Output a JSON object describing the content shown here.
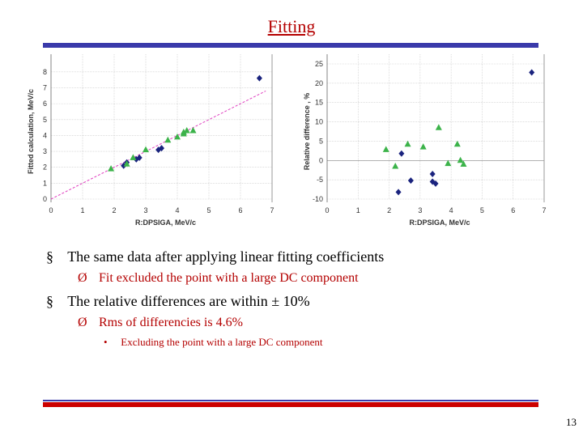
{
  "slide": {
    "title": "Fitting",
    "bullets": [
      {
        "marker": "§",
        "text": "The same data after applying linear fitting coefficients"
      },
      {
        "marker": "Ø",
        "text": "Fit excluded the point with a large DC component"
      },
      {
        "marker": "§",
        "text": "The relative differences are within ± 10%"
      },
      {
        "marker": "Ø",
        "text": "Rms of differencies is  4.6%"
      },
      {
        "marker": "•",
        "text": "Excluding the point with a large DC component"
      }
    ],
    "page_number": "13",
    "colors": {
      "title": "#b40000",
      "top_rule": "#3a3aaa",
      "bottom_rule": "#cc0000",
      "blue": "#1a237e",
      "green": "#3cb34a",
      "fit_line": "#e040c0"
    }
  },
  "chart_data": [
    {
      "type": "scatter",
      "xlabel": "R:DPSIGA, MeV/c",
      "ylabel": "Fitted calculation, MeV/c",
      "xlim": [
        0,
        7
      ],
      "ylim": [
        0,
        8.5
      ],
      "xticks": [
        "0",
        "1",
        "2",
        "3",
        "4",
        "5",
        "6",
        "7"
      ],
      "yticks": [
        "0",
        "1",
        "2",
        "3",
        "4",
        "5",
        "6",
        "7",
        "8"
      ],
      "grid": true,
      "fit_line": {
        "x": [
          0,
          6.8
        ],
        "y": [
          0,
          6.8
        ]
      },
      "series": [
        {
          "marker": "diamond",
          "color": "#1a237e",
          "points": [
            [
              2.3,
              2.1
            ],
            [
              2.4,
              2.3
            ],
            [
              2.7,
              2.5
            ],
            [
              2.8,
              2.6
            ],
            [
              3.4,
              3.1
            ],
            [
              3.5,
              3.2
            ],
            [
              6.6,
              7.6
            ]
          ]
        },
        {
          "marker": "triangle",
          "color": "#3cb34a",
          "points": [
            [
              1.9,
              1.9
            ],
            [
              2.4,
              2.2
            ],
            [
              2.6,
              2.6
            ],
            [
              3.0,
              3.1
            ],
            [
              3.7,
              3.7
            ],
            [
              4.0,
              3.9
            ],
            [
              4.2,
              4.2
            ],
            [
              4.3,
              4.3
            ],
            [
              4.5,
              4.3
            ],
            [
              4.2,
              4.1
            ]
          ]
        }
      ]
    },
    {
      "type": "scatter",
      "xlabel": "R:DPSIGA, MeV/c",
      "ylabel": "Relative difference , %",
      "xlim": [
        0,
        7
      ],
      "ylim": [
        -10,
        25
      ],
      "xticks": [
        "0",
        "1",
        "2",
        "3",
        "4",
        "5",
        "6",
        "7"
      ],
      "yticks": [
        "-10",
        "-5",
        "0",
        "5",
        "10",
        "15",
        "20",
        "25"
      ],
      "grid": true,
      "series": [
        {
          "marker": "diamond",
          "color": "#1a237e",
          "points": [
            [
              2.3,
              -8.2
            ],
            [
              2.4,
              1.8
            ],
            [
              2.7,
              -5.2
            ],
            [
              3.4,
              -3.5
            ],
            [
              3.4,
              -5.5
            ],
            [
              3.5,
              -6.0
            ],
            [
              6.6,
              22.8
            ]
          ]
        },
        {
          "marker": "triangle",
          "color": "#3cb34a",
          "points": [
            [
              1.9,
              2.8
            ],
            [
              2.2,
              -1.5
            ],
            [
              2.6,
              4.2
            ],
            [
              3.1,
              3.5
            ],
            [
              3.6,
              8.5
            ],
            [
              3.9,
              -0.8
            ],
            [
              4.2,
              4.2
            ],
            [
              4.3,
              0.0
            ],
            [
              4.4,
              -1.0
            ]
          ]
        }
      ]
    }
  ]
}
